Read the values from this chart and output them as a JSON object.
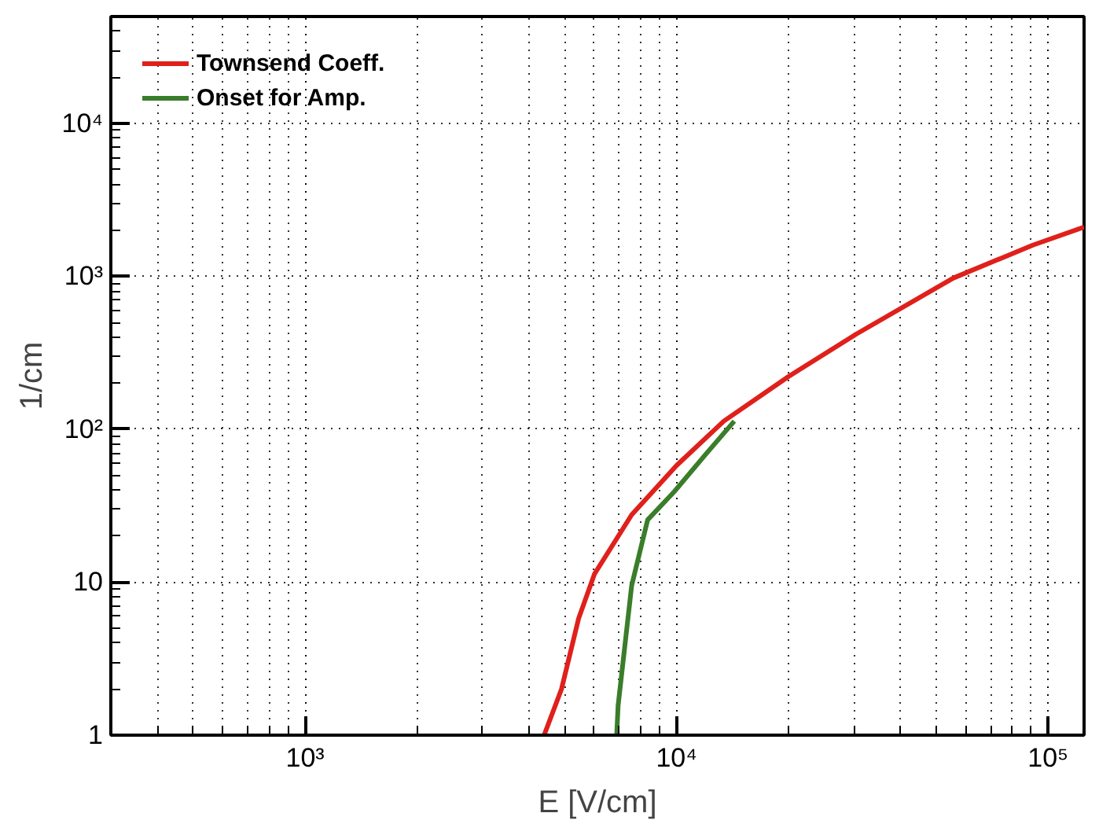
{
  "chart_data": {
    "type": "line",
    "xlabel": "E [V/cm]",
    "ylabel": "1/cm",
    "log": "xy",
    "grid": true,
    "legend": "top left",
    "line_style": "solid",
    "marker": "none",
    "xlim": [
      300,
      125000
    ],
    "ylim": [
      1,
      50000
    ],
    "xticks": [
      {
        "value": 1000,
        "label": "10³"
      },
      {
        "value": 10000,
        "label": "10⁴"
      },
      {
        "value": 100000,
        "label": "10⁵"
      }
    ],
    "yticks": [
      1,
      10,
      {
        "value": 100,
        "label": "10²"
      },
      {
        "value": 1000,
        "label": "10³"
      },
      {
        "value": 10000,
        "label": "10⁴"
      }
    ],
    "series": [
      {
        "name": "Townsend Coeff.",
        "color": "#e0201b",
        "x": [
          4400,
          4900,
          5450,
          6010,
          7570,
          10000,
          13400,
          20000,
          30500,
          55600,
          91000,
          125000
        ],
        "values": [
          1,
          2,
          5.8,
          11.3,
          27.6,
          58,
          113,
          221,
          420,
          975,
          1600,
          2100
        ]
      },
      {
        "name": "Onset for Amp.",
        "color": "#3a7d2a",
        "x": [
          6900,
          6960,
          7570,
          8360,
          9850,
          12000,
          14300
        ],
        "values": [
          1,
          1.56,
          9.5,
          25.6,
          39,
          69,
          113
        ]
      }
    ]
  }
}
